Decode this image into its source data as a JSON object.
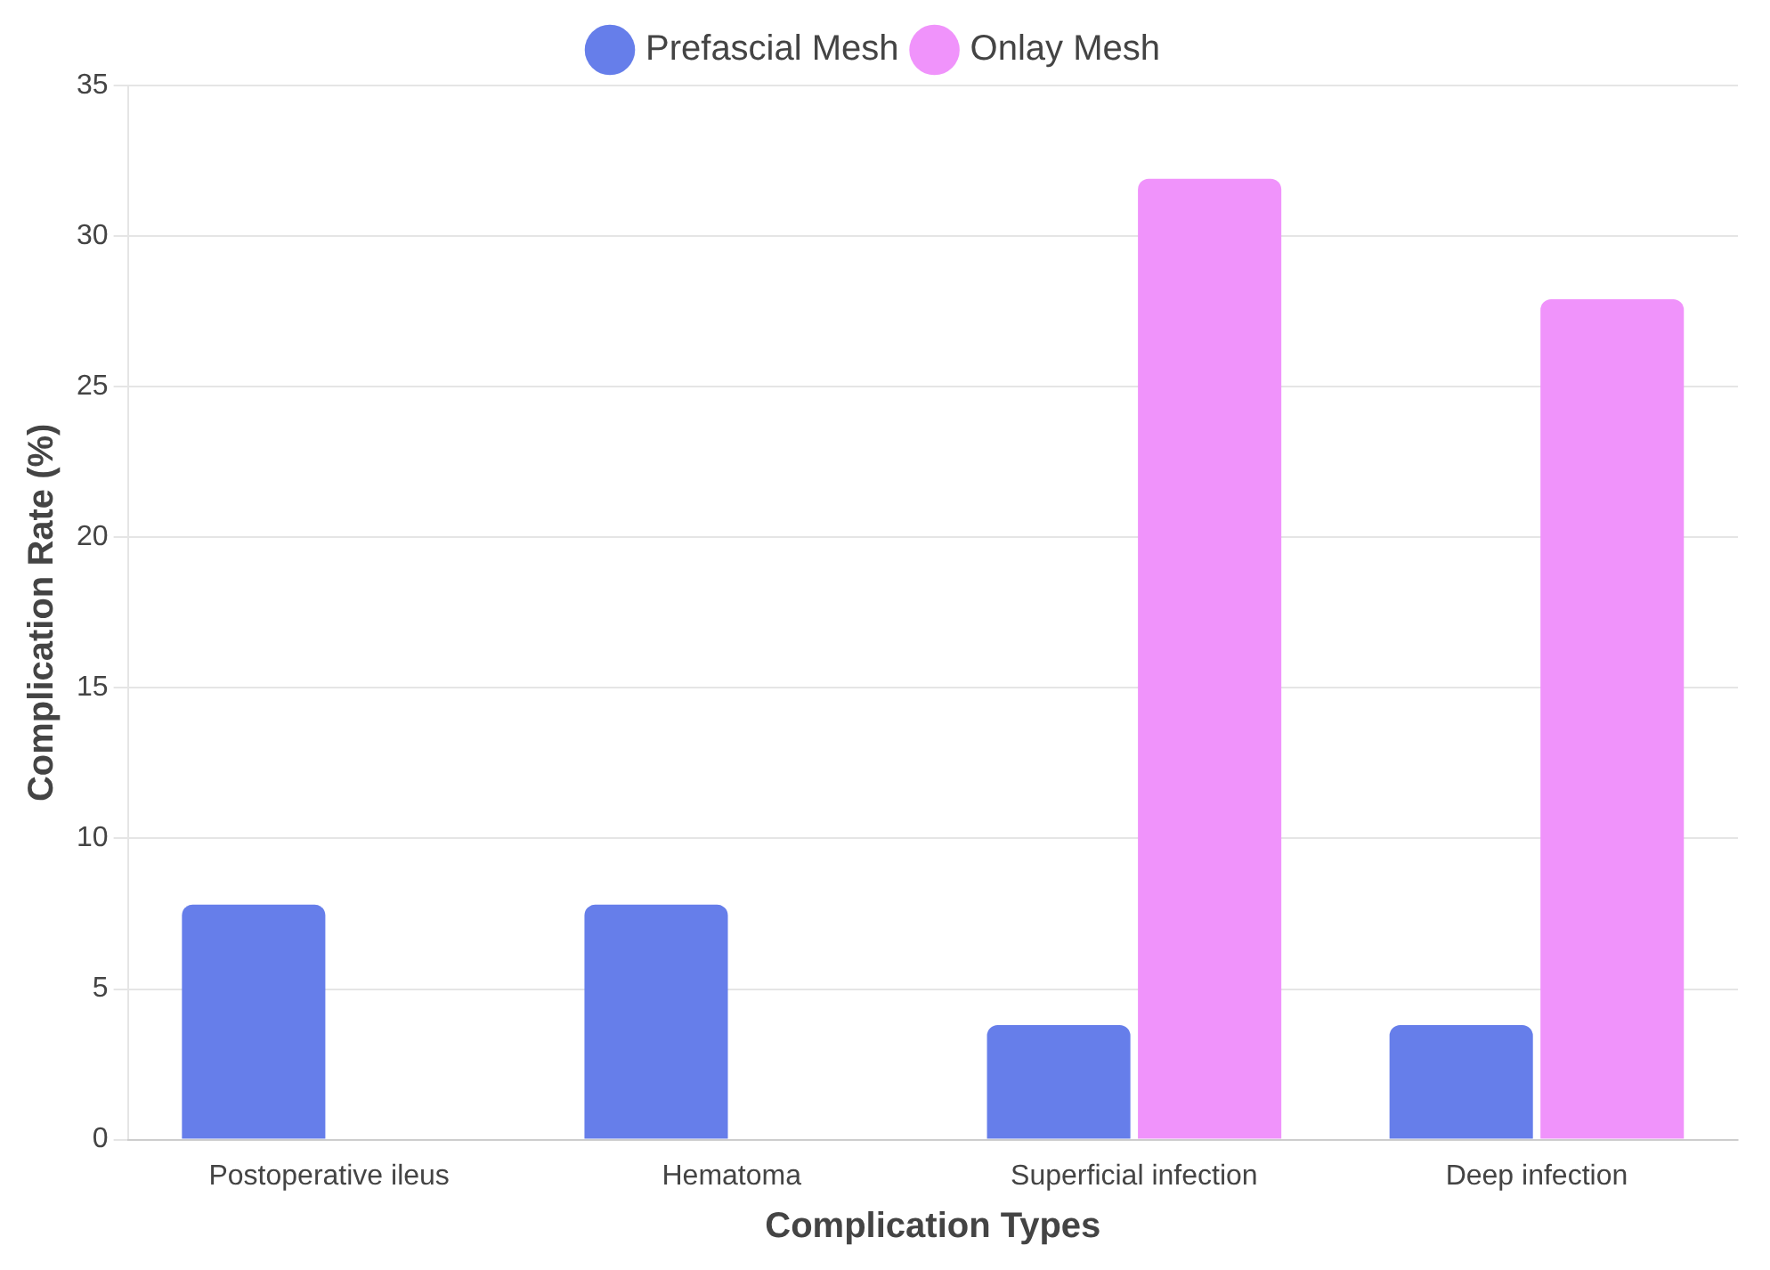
{
  "chart_data": {
    "type": "bar",
    "xlabel": "Complication Types",
    "ylabel": "Complication Rate (%)",
    "categories": [
      "Postoperative ileus",
      "Hematoma",
      "Superficial infection",
      "Deep infection"
    ],
    "series": [
      {
        "name": "Prefascial Mesh",
        "color": "#667eea",
        "values": [
          7.8,
          7.8,
          3.8,
          3.8
        ]
      },
      {
        "name": "Onlay Mesh",
        "color": "#f093fb",
        "values": [
          null,
          null,
          31.9,
          27.9
        ]
      }
    ],
    "ylim": [
      0,
      35
    ],
    "yticks": [
      0,
      5,
      10,
      15,
      20,
      25,
      30,
      35
    ],
    "grid": "y",
    "legend": "top"
  }
}
